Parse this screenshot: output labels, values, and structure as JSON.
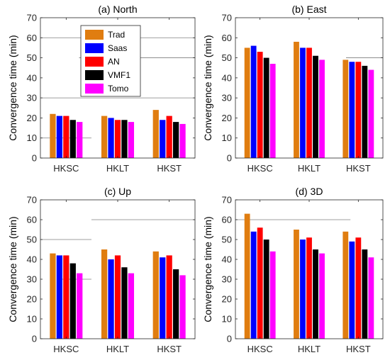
{
  "series_colors": [
    "#e07d10",
    "#0000ff",
    "#ff0000",
    "#000000",
    "#ff00ff"
  ],
  "legend": [
    "Trad",
    "Saas",
    "AN",
    "VMF1",
    "Tomo"
  ],
  "chart_data": [
    {
      "type": "bar",
      "title": "(a) North",
      "ylabel": "Convergence time (min)",
      "categories": [
        "HKSC",
        "HKLT",
        "HKST"
      ],
      "ylim": [
        0,
        70
      ],
      "yticks": [
        "0",
        "10",
        "20",
        "30",
        "40",
        "50",
        "60",
        "70"
      ],
      "series": [
        {
          "name": "Trad",
          "values": [
            22,
            21,
            24
          ]
        },
        {
          "name": "Saas",
          "values": [
            21,
            20,
            19
          ]
        },
        {
          "name": "AN",
          "values": [
            21,
            19,
            21
          ]
        },
        {
          "name": "VMF1",
          "values": [
            19,
            19,
            18
          ]
        },
        {
          "name": "Tomo",
          "values": [
            18,
            18,
            17
          ]
        }
      ],
      "gridlines": [
        {
          "y": 60,
          "from": 0,
          "to": 1
        },
        {
          "y": 30,
          "from": 0,
          "to": 1
        },
        {
          "y": 50,
          "from": 0.25,
          "to": 1
        },
        {
          "y": 10,
          "from": 0.0,
          "to": 0.33
        }
      ],
      "legend_position": "top-center"
    },
    {
      "type": "bar",
      "title": "(b) East",
      "ylabel": "Convergence time (min)",
      "categories": [
        "HKSC",
        "HKLT",
        "HKST"
      ],
      "ylim": [
        0,
        70
      ],
      "yticks": [
        "0",
        "10",
        "20",
        "30",
        "40",
        "50",
        "60",
        "70"
      ],
      "series": [
        {
          "name": "Trad",
          "values": [
            55,
            58,
            49
          ]
        },
        {
          "name": "Saas",
          "values": [
            56,
            55,
            48
          ]
        },
        {
          "name": "AN",
          "values": [
            53,
            55,
            48
          ]
        },
        {
          "name": "VMF1",
          "values": [
            50,
            51,
            46
          ]
        },
        {
          "name": "Tomo",
          "values": [
            47,
            49,
            44
          ]
        }
      ],
      "gridlines": [
        {
          "y": 50,
          "from": 0.75,
          "to": 1
        }
      ]
    },
    {
      "type": "bar",
      "title": "(c) Up",
      "ylabel": "Convergence time (min)",
      "categories": [
        "HKSC",
        "HKLT",
        "HKST"
      ],
      "ylim": [
        0,
        70
      ],
      "yticks": [
        "0",
        "10",
        "20",
        "30",
        "40",
        "50",
        "60",
        "70"
      ],
      "series": [
        {
          "name": "Trad",
          "values": [
            43,
            45,
            44
          ]
        },
        {
          "name": "Saas",
          "values": [
            42,
            40,
            41
          ]
        },
        {
          "name": "AN",
          "values": [
            42,
            42,
            42
          ]
        },
        {
          "name": "VMF1",
          "values": [
            38,
            36,
            35
          ]
        },
        {
          "name": "Tomo",
          "values": [
            33,
            33,
            32
          ]
        }
      ],
      "gridlines": [
        {
          "y": 50,
          "from": 0,
          "to": 0.33
        },
        {
          "y": 60,
          "from": 0.33,
          "to": 1
        },
        {
          "y": 30,
          "from": 0.12,
          "to": 0.33
        }
      ]
    },
    {
      "type": "bar",
      "title": "(d) 3D",
      "ylabel": "Convergence time (min)",
      "categories": [
        "HKSC",
        "HKLT",
        "HKST"
      ],
      "ylim": [
        0,
        70
      ],
      "yticks": [
        "0",
        "10",
        "20",
        "30",
        "40",
        "50",
        "60",
        "70"
      ],
      "series": [
        {
          "name": "Trad",
          "values": [
            63,
            55,
            54
          ]
        },
        {
          "name": "Saas",
          "values": [
            54,
            50,
            49
          ]
        },
        {
          "name": "AN",
          "values": [
            56,
            51,
            51
          ]
        },
        {
          "name": "VMF1",
          "values": [
            50,
            45,
            45
          ]
        },
        {
          "name": "Tomo",
          "values": [
            44,
            43,
            41
          ]
        }
      ],
      "gridlines": [
        {
          "y": 60,
          "from": 0,
          "to": 0.78
        }
      ]
    }
  ]
}
